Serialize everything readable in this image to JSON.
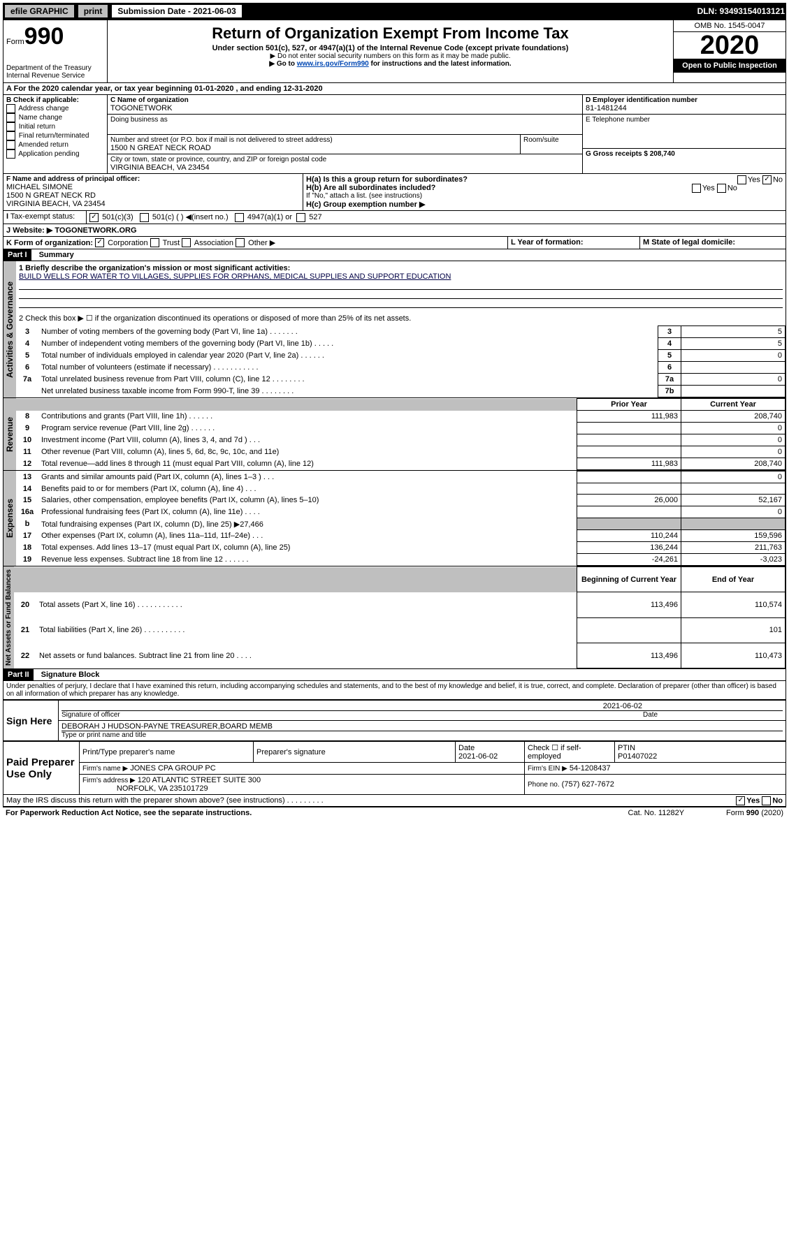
{
  "topbar": {
    "efile": "efile GRAPHIC",
    "print": "print",
    "sub_label": "Submission Date - 2021-06-03",
    "dln": "DLN: 93493154013121"
  },
  "header": {
    "form_prefix": "Form",
    "form_number": "990",
    "dept": "Department of the Treasury",
    "irs": "Internal Revenue Service",
    "title": "Return of Organization Exempt From Income Tax",
    "subtitle": "Under section 501(c), 527, or 4947(a)(1) of the Internal Revenue Code (except private foundations)",
    "note1": "▶ Do not enter social security numbers on this form as it may be made public.",
    "note2_prefix": "▶ Go to ",
    "note2_link": "www.irs.gov/Form990",
    "note2_suffix": " for instructions and the latest information.",
    "omb": "OMB No. 1545-0047",
    "year": "2020",
    "open": "Open to Public Inspection"
  },
  "sectionA": {
    "calendar_line": "For the 2020 calendar year, or tax year beginning 01-01-2020    , and ending 12-31-2020",
    "b_label": "B Check if applicable:",
    "b_items": [
      "Address change",
      "Name change",
      "Initial return",
      "Final return/terminated",
      "Amended return",
      "Application pending"
    ],
    "c_label": "C Name of organization",
    "c_name": "TOGONETWORK",
    "dba_label": "Doing business as",
    "addr_label": "Number and street (or P.O. box if mail is not delivered to street address)",
    "room_label": "Room/suite",
    "addr": "1500 N GREAT NECK ROAD",
    "city_label": "City or town, state or province, country, and ZIP or foreign postal code",
    "city": "VIRGINIA BEACH, VA  23454",
    "d_label": "D Employer identification number",
    "d_val": "81-1481244",
    "e_label": "E Telephone number",
    "g_label": "G Gross receipts $ 208,740",
    "f_label": "F  Name and address of principal officer:",
    "f_name": "MICHAEL SIMONE",
    "f_addr1": "1500 N GREAT NECK RD",
    "f_addr2": "VIRGINIA BEACH, VA  23454",
    "ha_label": "H(a)  Is this a group return for subordinates?",
    "hb_label": "H(b)  Are all subordinates included?",
    "h_note": "If \"No,\" attach a list. (see instructions)",
    "hc_label": "H(c)  Group exemption number ▶",
    "yes": "Yes",
    "no": "No",
    "i_label": "Tax-exempt status:",
    "i_501c3": "501(c)(3)",
    "i_501c": "501(c) (   ) ◀(insert no.)",
    "i_4947": "4947(a)(1) or",
    "i_527": "527",
    "j_label": "Website: ▶",
    "j_val": "TOGONETWORK.ORG",
    "k_label": "K Form of organization:",
    "k_corp": "Corporation",
    "k_trust": "Trust",
    "k_assoc": "Association",
    "k_other": "Other ▶",
    "l_label": "L Year of formation:",
    "m_label": "M State of legal domicile:"
  },
  "part1": {
    "title": "Part I",
    "subtitle": "Summary",
    "line1_label": "1  Briefly describe the organization's mission or most significant activities:",
    "line1_val": "BUILD WELLS FOR WATER TO VILLAGES, SUPPLIES FOR ORPHANS, MEDICAL SUPPLIES AND SUPPORT EDUCATION",
    "line2": "2    Check this box ▶ ☐  if the organization discontinued its operations or disposed of more than 25% of its net assets.",
    "section_labels": {
      "gov": "Activities & Governance",
      "rev": "Revenue",
      "exp": "Expenses",
      "net": "Net Assets or Fund Balances"
    },
    "gov_lines": [
      {
        "num": "3",
        "text": "Number of voting members of the governing body (Part VI, line 1a)   .     .     .     .     .     .     .",
        "box": "3",
        "val": "5"
      },
      {
        "num": "4",
        "text": "Number of independent voting members of the governing body (Part VI, line 1b)   .     .     .     .     .",
        "box": "4",
        "val": "5"
      },
      {
        "num": "5",
        "text": "Total number of individuals employed in calendar year 2020 (Part V, line 2a)   .     .     .     .     .     .",
        "box": "5",
        "val": "0"
      },
      {
        "num": "6",
        "text": "Total number of volunteers (estimate if necessary)   .     .     .     .     .     .     .     .     .     .     .",
        "box": "6",
        "val": ""
      },
      {
        "num": "7a",
        "text": "Total unrelated business revenue from Part VIII, column (C), line 12   .     .     .     .     .     .     .     .",
        "box": "7a",
        "val": "0"
      },
      {
        "num": "",
        "text": "Net unrelated business taxable income from Form 990-T, line 39   .     .     .     .     .     .     .     .",
        "box": "7b",
        "val": ""
      }
    ],
    "col_prior": "Prior Year",
    "col_current": "Current Year",
    "rev_lines": [
      {
        "num": "8",
        "text": "Contributions and grants (Part VIII, line 1h)   .     .     .     .     .     .",
        "prior": "111,983",
        "curr": "208,740"
      },
      {
        "num": "9",
        "text": "Program service revenue (Part VIII, line 2g)   .     .     .     .     .     .",
        "prior": "",
        "curr": "0"
      },
      {
        "num": "10",
        "text": "Investment income (Part VIII, column (A), lines 3, 4, and 7d )   .     .     .",
        "prior": "",
        "curr": "0"
      },
      {
        "num": "11",
        "text": "Other revenue (Part VIII, column (A), lines 5, 6d, 8c, 9c, 10c, and 11e)",
        "prior": "",
        "curr": "0"
      },
      {
        "num": "12",
        "text": "Total revenue—add lines 8 through 11 (must equal Part VIII, column (A), line 12)",
        "prior": "111,983",
        "curr": "208,740"
      }
    ],
    "exp_lines": [
      {
        "num": "13",
        "text": "Grants and similar amounts paid (Part IX, column (A), lines 1–3 )   .     .     .",
        "prior": "",
        "curr": "0"
      },
      {
        "num": "14",
        "text": "Benefits paid to or for members (Part IX, column (A), line 4)   .     .     .",
        "prior": "",
        "curr": ""
      },
      {
        "num": "15",
        "text": "Salaries, other compensation, employee benefits (Part IX, column (A), lines 5–10)",
        "prior": "26,000",
        "curr": "52,167"
      },
      {
        "num": "16a",
        "text": "Professional fundraising fees (Part IX, column (A), line 11e)   .     .     .     .",
        "prior": "",
        "curr": "0"
      },
      {
        "num": "b",
        "text": "Total fundraising expenses (Part IX, column (D), line 25) ▶27,466",
        "prior": "SHADE",
        "curr": "SHADE"
      },
      {
        "num": "17",
        "text": "Other expenses (Part IX, column (A), lines 11a–11d, 11f–24e)   .     .     .",
        "prior": "110,244",
        "curr": "159,596"
      },
      {
        "num": "18",
        "text": "Total expenses. Add lines 13–17 (must equal Part IX, column (A), line 25)",
        "prior": "136,244",
        "curr": "211,763"
      },
      {
        "num": "19",
        "text": "Revenue less expenses. Subtract line 18 from line 12   .     .     .     .     .     .",
        "prior": "-24,261",
        "curr": "-3,023"
      }
    ],
    "col_begin": "Beginning of Current Year",
    "col_end": "End of Year",
    "net_lines": [
      {
        "num": "20",
        "text": "Total assets (Part X, line 16)   .     .     .     .     .     .     .     .     .     .     .",
        "prior": "113,496",
        "curr": "110,574"
      },
      {
        "num": "21",
        "text": "Total liabilities (Part X, line 26)   .     .     .     .     .     .     .     .     .     .",
        "prior": "",
        "curr": "101"
      },
      {
        "num": "22",
        "text": "Net assets or fund balances. Subtract line 21 from line 20   .     .     .     .",
        "prior": "113,496",
        "curr": "110,473"
      }
    ]
  },
  "part2": {
    "title": "Part II",
    "subtitle": "Signature Block",
    "perjury": "Under penalties of perjury, I declare that I have examined this return, including accompanying schedules and statements, and to the best of my knowledge and belief, it is true, correct, and complete. Declaration of preparer (other than officer) is based on all information of which preparer has any knowledge.",
    "sign_here": "Sign Here",
    "sig_date": "2021-06-02",
    "sig_officer": "Signature of officer",
    "date_label": "Date",
    "officer_name": "DEBORAH J HUDSON-PAYNE  TREASURER,BOARD MEMB",
    "type_name": "Type or print name and title",
    "paid": "Paid Preparer Use Only",
    "prep_name_label": "Print/Type preparer's name",
    "prep_sig_label": "Preparer's signature",
    "prep_date": "2021-06-02",
    "check_self": "Check ☐ if self-employed",
    "ptin_label": "PTIN",
    "ptin": "P01407022",
    "firm_name_label": "Firm's name   ▶",
    "firm_name": "JONES CPA GROUP PC",
    "firm_ein_label": "Firm's EIN ▶",
    "firm_ein": "54-1208437",
    "firm_addr_label": "Firm's address ▶",
    "firm_addr1": "120 ATLANTIC STREET SUITE 300",
    "firm_addr2": "NORFOLK, VA  235101729",
    "phone_label": "Phone no.",
    "phone": "(757) 627-7672",
    "discuss": "May the IRS discuss this return with the preparer shown above? (see instructions)     .     .     .     .     .     .     .     .     .",
    "paperwork": "For Paperwork Reduction Act Notice, see the separate instructions.",
    "cat": "Cat. No. 11282Y",
    "form_footer": "Form 990 (2020)"
  }
}
